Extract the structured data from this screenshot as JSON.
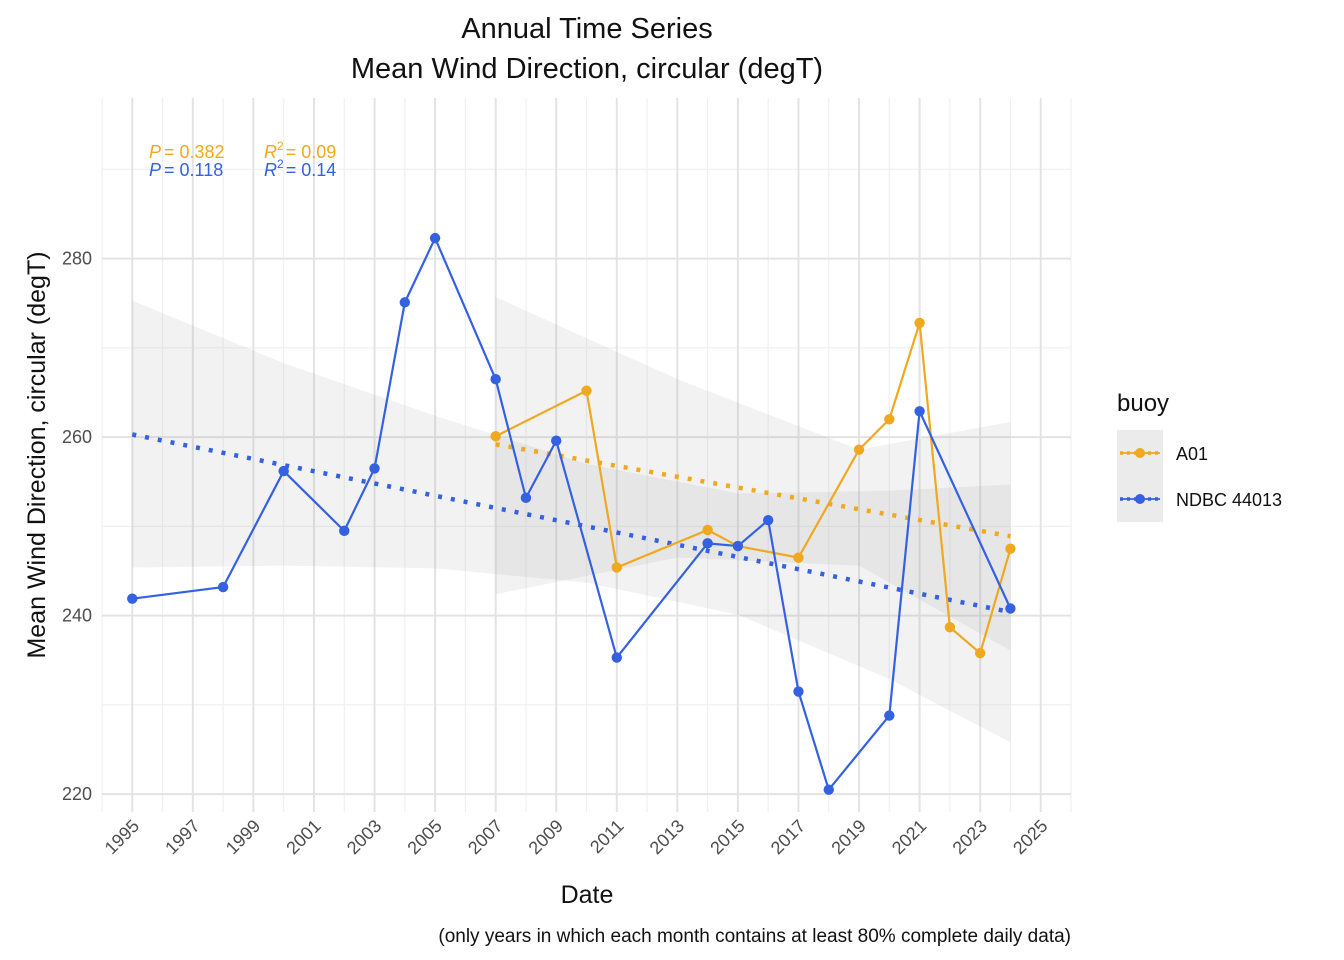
{
  "chart_data": {
    "type": "line",
    "title": "Annual Time Series",
    "subtitle": "Mean Wind Direction, circular (degT)",
    "xlabel": "Date",
    "ylabel": "Mean Wind Direction, circular (degT)",
    "caption": "(only years in which each month contains at least 80% complete daily data)",
    "xlim": [
      1994,
      2026
    ],
    "ylim": [
      218,
      298
    ],
    "x_ticks": [
      "1995",
      "1997",
      "1999",
      "2001",
      "2003",
      "2005",
      "2007",
      "2009",
      "2011",
      "2013",
      "2015",
      "2017",
      "2019",
      "2021",
      "2023",
      "2025"
    ],
    "y_ticks": [
      "220",
      "240",
      "260",
      "280"
    ],
    "grid": true,
    "legend": {
      "title": "buoy",
      "position": "right"
    },
    "series": [
      {
        "name": "A01",
        "color": "#F0A81E",
        "x": [
          2007,
          2010,
          2011,
          2014,
          2015,
          2017,
          2019,
          2020,
          2021,
          2022,
          2023,
          2024
        ],
        "y": [
          260.1,
          265.2,
          245.4,
          249.6,
          247.8,
          246.5,
          258.6,
          262.0,
          272.8,
          238.7,
          235.8,
          247.5
        ],
        "trend": {
          "x": [
            2007,
            2024
          ],
          "y": [
            259.2,
            248.9
          ]
        },
        "band": {
          "x": [
            2007,
            2013,
            2019,
            2024
          ],
          "upper": [
            275.7,
            266.5,
            258.6,
            261.7
          ],
          "lower": [
            242.4,
            246.5,
            245.6,
            236.1
          ]
        },
        "stats": {
          "p_label": "P",
          "p_value": "= 0.382",
          "r2_label": "R",
          "r2_sup": "2",
          "r2_value": "= 0.09"
        }
      },
      {
        "name": "NDBC 44013",
        "color": "#3461E2",
        "x": [
          1995,
          1998,
          2000,
          2002,
          2003,
          2004,
          2005,
          2007,
          2008,
          2009,
          2011,
          2014,
          2015,
          2016,
          2017,
          2018,
          2020,
          2021,
          2024
        ],
        "y": [
          241.9,
          243.2,
          256.2,
          249.5,
          256.5,
          275.1,
          282.3,
          266.5,
          253.2,
          259.6,
          235.3,
          248.1,
          247.8,
          250.7,
          231.5,
          220.5,
          228.8,
          262.9,
          240.8
        ],
        "trend": {
          "x": [
            1995,
            2024
          ],
          "y": [
            260.3,
            240.4
          ]
        },
        "band": {
          "x": [
            1995,
            2000,
            2005,
            2010,
            2015,
            2020,
            2024
          ],
          "upper": [
            275.3,
            268.3,
            262.4,
            257.0,
            253.7,
            254.0,
            254.7
          ],
          "lower": [
            245.4,
            245.6,
            245.3,
            243.7,
            240.1,
            232.9,
            225.8
          ]
        },
        "stats": {
          "p_label": "P",
          "p_value": "= 0.118",
          "r2_label": "R",
          "r2_sup": "2",
          "r2_value": "= 0.14"
        }
      }
    ]
  }
}
